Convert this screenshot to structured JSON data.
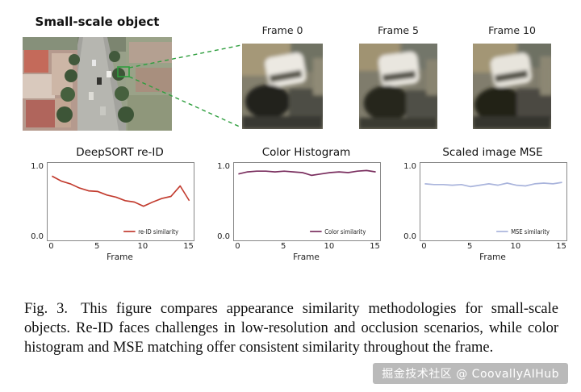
{
  "figure": {
    "object_label": "Small-scale object",
    "frames": [
      {
        "label": "Frame 0"
      },
      {
        "label": "Frame 5"
      },
      {
        "label": "Frame 10"
      }
    ]
  },
  "chart_data": [
    {
      "type": "line",
      "title": "DeepSORT re-ID",
      "xlabel": "Frame",
      "legend": "re-ID similarity",
      "legend_position": "lower right",
      "color": "#c23b2e",
      "x": [
        0,
        1,
        2,
        3,
        4,
        5,
        6,
        7,
        8,
        9,
        10,
        11,
        12,
        13,
        14,
        15
      ],
      "values": [
        0.87,
        0.8,
        0.76,
        0.7,
        0.66,
        0.65,
        0.6,
        0.57,
        0.52,
        0.5,
        0.44,
        0.5,
        0.55,
        0.58,
        0.73,
        0.52
      ],
      "xlim": [
        0,
        15
      ],
      "ylim": [
        0.0,
        1.0
      ],
      "xticks": [
        0,
        5,
        10,
        15
      ],
      "yticks": [
        "0.0",
        "1.0"
      ],
      "grid": false
    },
    {
      "type": "line",
      "title": "Color Histogram",
      "xlabel": "Frame",
      "legend": "Color similarity",
      "legend_position": "lower right",
      "color": "#7a2f5f",
      "x": [
        0,
        1,
        2,
        3,
        4,
        5,
        6,
        7,
        8,
        9,
        10,
        11,
        12,
        13,
        14,
        15
      ],
      "values": [
        0.9,
        0.93,
        0.94,
        0.94,
        0.93,
        0.94,
        0.93,
        0.92,
        0.88,
        0.9,
        0.92,
        0.93,
        0.92,
        0.94,
        0.95,
        0.93
      ],
      "xlim": [
        0,
        15
      ],
      "ylim": [
        0.0,
        1.0
      ],
      "xticks": [
        0,
        5,
        10,
        15
      ],
      "yticks": [
        "0.0",
        "1.0"
      ],
      "grid": false
    },
    {
      "type": "line",
      "title": "Scaled image MSE",
      "xlabel": "Frame",
      "legend": "MSE similarity",
      "legend_position": "lower right",
      "color": "#a9b4dc",
      "x": [
        0,
        1,
        2,
        3,
        4,
        5,
        6,
        7,
        8,
        9,
        10,
        11,
        12,
        13,
        14,
        15
      ],
      "values": [
        0.76,
        0.75,
        0.75,
        0.74,
        0.75,
        0.72,
        0.74,
        0.76,
        0.74,
        0.77,
        0.74,
        0.73,
        0.76,
        0.77,
        0.76,
        0.78
      ],
      "xlim": [
        0,
        15
      ],
      "ylim": [
        0.0,
        1.0
      ],
      "xticks": [
        0,
        5,
        10,
        15
      ],
      "yticks": [
        "0.0",
        "1.0"
      ],
      "grid": false
    }
  ],
  "caption": {
    "label": "Fig. 3.",
    "text": "This figure compares appearance similarity methodologies for small-scale objects. Re-ID faces challenges in low-resolution and occlusion scenarios, while color histogram and MSE matching offer consistent similarity throughout the frame."
  },
  "watermark": "掘金技术社区 @ CoovallyAIHub"
}
